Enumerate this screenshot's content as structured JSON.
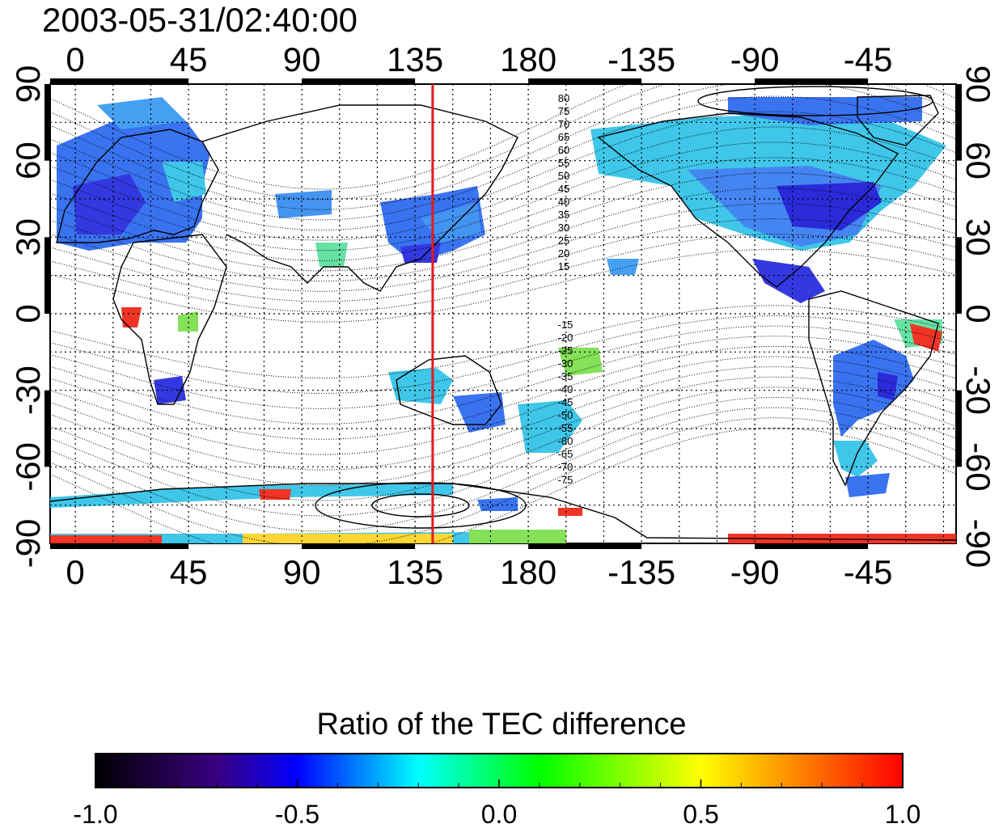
{
  "timestamp": "2003-05-31/02:40:00",
  "map": {
    "lon_ticks": [
      "0",
      "45",
      "90",
      "135",
      "180",
      "-135",
      "-90",
      "-45"
    ],
    "lat_ticks": [
      "90",
      "60",
      "30",
      "0",
      "-30",
      "-60",
      "-90"
    ],
    "contour_labels_north": [
      "80",
      "75",
      "70",
      "65",
      "60",
      "55",
      "50",
      "45",
      "40",
      "35",
      "30",
      "25",
      "20",
      "15"
    ],
    "contour_labels_south": [
      "-15",
      "-20",
      "-25",
      "-30",
      "-35",
      "-40",
      "-45",
      "-50",
      "-55",
      "-60",
      "-65",
      "-70",
      "-75"
    ],
    "meridian_marker_lon": 142,
    "marker_color": "#e41a1c"
  },
  "colorbar": {
    "title": "Ratio of the TEC difference",
    "tick_labels": [
      "-1.0",
      "-0.5",
      "0.0",
      "0.5",
      "1.0"
    ],
    "range": [
      -1.0,
      1.0
    ],
    "colors": [
      "#000000",
      "#3a0080",
      "#0000ff",
      "#00ffff",
      "#00ff00",
      "#ffff00",
      "#ff0000"
    ]
  }
}
